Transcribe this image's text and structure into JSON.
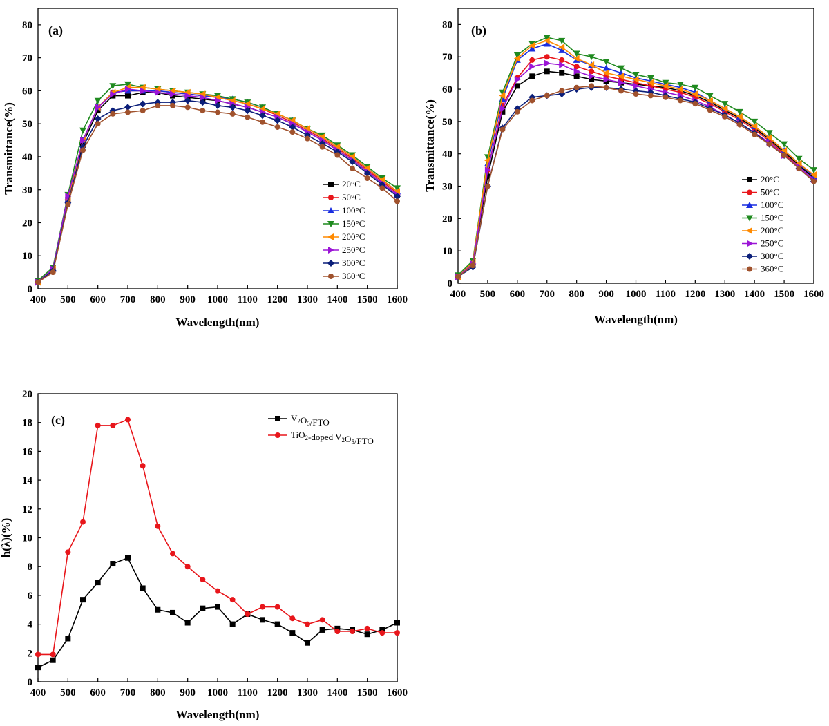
{
  "chart_data": [
    {
      "type": "line",
      "panel_label": "(a)",
      "xlabel": "Wavelength(nm)",
      "ylabel": "Transmittance(%)",
      "xlim": [
        400,
        1600
      ],
      "ylim": [
        0,
        85
      ],
      "xticks": [
        400,
        500,
        600,
        700,
        800,
        900,
        1000,
        1100,
        1200,
        1300,
        1400,
        1500,
        1600
      ],
      "yticks": [
        0,
        10,
        20,
        30,
        40,
        50,
        60,
        70,
        80
      ],
      "legend_position": "right",
      "x": [
        400,
        450,
        500,
        550,
        600,
        650,
        700,
        750,
        800,
        850,
        900,
        950,
        1000,
        1050,
        1100,
        1150,
        1200,
        1250,
        1300,
        1350,
        1400,
        1450,
        1500,
        1550,
        1600
      ],
      "series": [
        {
          "name": "20°C",
          "color": "#000000",
          "marker": "square",
          "values": [
            2,
            6,
            27,
            44,
            54,
            58.5,
            58.5,
            59.5,
            59.5,
            58.5,
            58,
            57.5,
            57,
            56,
            55,
            53.5,
            52,
            50,
            47.5,
            45,
            42,
            39,
            35.5,
            32,
            28.5
          ]
        },
        {
          "name": "50°C",
          "color": "#e8161b",
          "marker": "circle",
          "values": [
            2,
            6,
            27,
            45,
            55,
            59.5,
            60,
            60,
            60,
            59.5,
            59,
            58.5,
            58,
            57,
            56,
            54.5,
            52.5,
            50.5,
            48,
            45.5,
            42.5,
            39.5,
            36,
            32.5,
            29
          ]
        },
        {
          "name": "100°C",
          "color": "#1a2ee0",
          "marker": "triangle-up",
          "values": [
            2,
            6,
            27,
            45,
            55,
            59.5,
            60,
            60,
            60,
            59.5,
            59,
            58.5,
            58,
            57.5,
            56.5,
            55,
            53,
            51,
            48.5,
            46,
            43,
            40,
            36.5,
            33,
            29.5
          ]
        },
        {
          "name": "150°C",
          "color": "#1f8a1f",
          "marker": "triangle-down",
          "values": [
            2.5,
            6.5,
            28.5,
            48,
            57,
            61.5,
            62,
            61,
            60.5,
            60,
            59.5,
            59,
            58.5,
            57.5,
            56.5,
            55,
            53,
            51,
            48.5,
            46.5,
            43.5,
            40.5,
            37,
            33.5,
            30.5
          ]
        },
        {
          "name": "200°C",
          "color": "#ff8a00",
          "marker": "triangle-left",
          "values": [
            2,
            6,
            27,
            45,
            55,
            59.5,
            61,
            61,
            60.5,
            60,
            59.5,
            59,
            58,
            57,
            56,
            54.5,
            53,
            51,
            48.5,
            46,
            43,
            40,
            36.5,
            33,
            29.5
          ]
        },
        {
          "name": "250°C",
          "color": "#9b15d6",
          "marker": "triangle-right",
          "values": [
            2,
            6,
            28,
            45,
            55,
            59,
            60.5,
            60,
            59.5,
            59,
            58.5,
            58,
            57,
            56,
            55,
            53.5,
            52,
            50,
            47.5,
            45,
            42,
            39,
            35.5,
            32,
            28.5
          ]
        },
        {
          "name": "300°C",
          "color": "#0b1f7a",
          "marker": "diamond",
          "values": [
            2,
            5.5,
            26,
            43,
            51.5,
            54,
            55,
            56,
            56.5,
            56.5,
            57,
            56.5,
            55.5,
            55,
            54,
            52.5,
            51,
            49,
            46.5,
            44,
            41.5,
            38.5,
            35,
            31.5,
            28
          ]
        },
        {
          "name": "360°C",
          "color": "#a0522d",
          "marker": "circle",
          "values": [
            2,
            5,
            25.5,
            42,
            50,
            53,
            53.5,
            54,
            55.5,
            55.5,
            55,
            54,
            53.5,
            53,
            52,
            50.5,
            49,
            47.5,
            45.5,
            43,
            40.5,
            36.5,
            33.5,
            30.5,
            26.5
          ]
        }
      ]
    },
    {
      "type": "line",
      "panel_label": "(b)",
      "xlabel": "Wavelength(nm)",
      "ylabel": "Transmittance(%)",
      "xlim": [
        400,
        1600
      ],
      "ylim": [
        0,
        85
      ],
      "xticks": [
        400,
        500,
        600,
        700,
        800,
        900,
        1000,
        1100,
        1200,
        1300,
        1400,
        1500,
        1600
      ],
      "yticks": [
        0,
        10,
        20,
        30,
        40,
        50,
        60,
        70,
        80
      ],
      "legend_position": "bottom-right",
      "x": [
        400,
        450,
        500,
        550,
        600,
        650,
        700,
        750,
        800,
        850,
        900,
        950,
        1000,
        1050,
        1100,
        1150,
        1200,
        1250,
        1300,
        1350,
        1400,
        1450,
        1500,
        1550,
        1600
      ],
      "series": [
        {
          "name": "20°C",
          "color": "#000000",
          "marker": "square",
          "values": [
            2,
            6,
            33,
            53,
            61,
            64,
            65.5,
            65,
            64,
            63,
            62.5,
            62,
            61.5,
            61,
            60.5,
            59.5,
            58,
            56,
            53.5,
            51,
            48,
            44.5,
            40.5,
            36.5,
            32.5
          ]
        },
        {
          "name": "50°C",
          "color": "#e8161b",
          "marker": "circle",
          "values": [
            2,
            6,
            35,
            55,
            63.5,
            69,
            70,
            69,
            67,
            65.5,
            64,
            63,
            62,
            61,
            60,
            59,
            57.5,
            55.5,
            53,
            50.5,
            47.5,
            44,
            40,
            36,
            32
          ]
        },
        {
          "name": "100°C",
          "color": "#1a2ee0",
          "marker": "triangle-up",
          "values": [
            2,
            6.5,
            37,
            57,
            69,
            72.5,
            74,
            72,
            69,
            67.5,
            66.5,
            65,
            63.5,
            62.5,
            61.5,
            60.5,
            59,
            56.5,
            54,
            51.5,
            48.5,
            45,
            41,
            37,
            33
          ]
        },
        {
          "name": "150°C",
          "color": "#1f8a1f",
          "marker": "triangle-down",
          "values": [
            2.5,
            7,
            39,
            59,
            70.5,
            74,
            76,
            75,
            71,
            70,
            68.5,
            66.5,
            64.5,
            63.5,
            62,
            61.5,
            60.5,
            58,
            55.5,
            53,
            50,
            46.5,
            43,
            38.5,
            35
          ]
        },
        {
          "name": "200°C",
          "color": "#ff8a00",
          "marker": "triangle-left",
          "values": [
            2,
            6.5,
            38,
            58,
            69.5,
            73.5,
            75,
            73,
            69.5,
            67.5,
            65,
            64,
            63,
            62,
            61,
            60,
            58.5,
            56.5,
            54,
            51.5,
            48.5,
            45,
            41,
            37,
            33.5
          ]
        },
        {
          "name": "250°C",
          "color": "#9b15d6",
          "marker": "triangle-right",
          "values": [
            2,
            6,
            35,
            54,
            63,
            67,
            68,
            67.5,
            65.5,
            64,
            63,
            62,
            61,
            60,
            59,
            58,
            56.5,
            54.5,
            52,
            49.5,
            46.5,
            43.5,
            39.5,
            36,
            32
          ]
        },
        {
          "name": "300°C",
          "color": "#0b1f7a",
          "marker": "diamond",
          "values": [
            2,
            5,
            30,
            48,
            54,
            57.5,
            58,
            58.5,
            60,
            60.5,
            60.5,
            60,
            59.5,
            59,
            58,
            57,
            56,
            54,
            52,
            49.5,
            46.5,
            43,
            39.5,
            35.5,
            31.5
          ]
        },
        {
          "name": "360°C",
          "color": "#a0522d",
          "marker": "circle",
          "values": [
            2,
            5.5,
            30,
            47.5,
            53,
            56.5,
            58,
            59.5,
            60.5,
            61,
            60.5,
            59.5,
            58.5,
            58,
            57.5,
            56.5,
            55.5,
            53.5,
            51.5,
            49,
            46,
            43,
            39.5,
            35.5,
            31.5
          ]
        }
      ]
    },
    {
      "type": "line",
      "panel_label": "(c)",
      "xlabel": "Wavelength(nm)",
      "ylabel": "h(λ)(%)",
      "xlim": [
        400,
        1600
      ],
      "ylim": [
        0,
        20
      ],
      "xticks": [
        400,
        500,
        600,
        700,
        800,
        900,
        1000,
        1100,
        1200,
        1300,
        1400,
        1500,
        1600
      ],
      "yticks": [
        0,
        2,
        4,
        6,
        8,
        10,
        12,
        14,
        16,
        18,
        20
      ],
      "legend_position": "top-right",
      "x": [
        400,
        450,
        500,
        550,
        600,
        650,
        700,
        750,
        800,
        850,
        900,
        950,
        1000,
        1050,
        1100,
        1150,
        1200,
        1250,
        1300,
        1350,
        1400,
        1450,
        1500,
        1550,
        1600
      ],
      "series": [
        {
          "name": "V2O5/FTO",
          "color": "#000000",
          "marker": "square",
          "values": [
            1.0,
            1.5,
            3.0,
            5.7,
            6.9,
            8.2,
            8.6,
            6.5,
            5.0,
            4.8,
            4.1,
            5.1,
            5.2,
            4.0,
            4.7,
            4.3,
            4.0,
            3.4,
            2.7,
            3.6,
            3.7,
            3.6,
            3.3,
            3.6,
            4.1
          ]
        },
        {
          "name": "TiO2-doped V2O5/FTO",
          "color": "#e8161b",
          "marker": "circle",
          "values": [
            1.9,
            1.9,
            9.0,
            11.1,
            17.8,
            17.8,
            18.2,
            15.0,
            10.8,
            8.9,
            8.0,
            7.1,
            6.3,
            5.7,
            4.7,
            5.2,
            5.2,
            4.4,
            4.0,
            4.3,
            3.5,
            3.5,
            3.7,
            3.4,
            3.4
          ]
        }
      ]
    }
  ]
}
